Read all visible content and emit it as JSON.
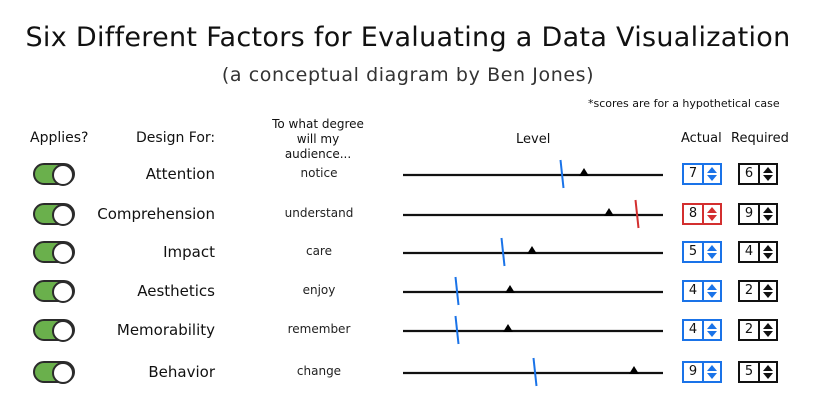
{
  "title": "Six Different Factors for Evaluating a Data Visualization",
  "subtitle": "(a conceptual diagram by Ben Jones)",
  "footnote": "*scores are for a hypothetical case",
  "headers": {
    "applies": "Applies?",
    "design_for": "Design For:",
    "degree": "To what degree will my audience...",
    "level": "Level",
    "actual": "Actual",
    "required": "Required"
  },
  "colors": {
    "toggle_on": "#6ab04c",
    "actual_marker": "#000000",
    "required_marker": "#1a73e8",
    "shortfall": "#d32f2f"
  },
  "scale": {
    "min": 1,
    "max": 10
  },
  "rows": [
    {
      "factor": "Attention",
      "verb": "notice",
      "applies": true,
      "actual": 7,
      "required": 6,
      "flag": false
    },
    {
      "factor": "Comprehension",
      "verb": "understand",
      "applies": true,
      "actual": 8,
      "required": 9,
      "flag": true
    },
    {
      "factor": "Impact",
      "verb": "care",
      "applies": true,
      "actual": 5,
      "required": 4,
      "flag": false
    },
    {
      "factor": "Aesthetics",
      "verb": "enjoy",
      "applies": true,
      "actual": 4,
      "required": 2,
      "flag": false
    },
    {
      "factor": "Memorability",
      "verb": "remember",
      "applies": true,
      "actual": 4,
      "required": 2,
      "flag": false
    },
    {
      "factor": "Behavior",
      "verb": "change",
      "applies": true,
      "actual": 9,
      "required": 5,
      "flag": false
    }
  ]
}
